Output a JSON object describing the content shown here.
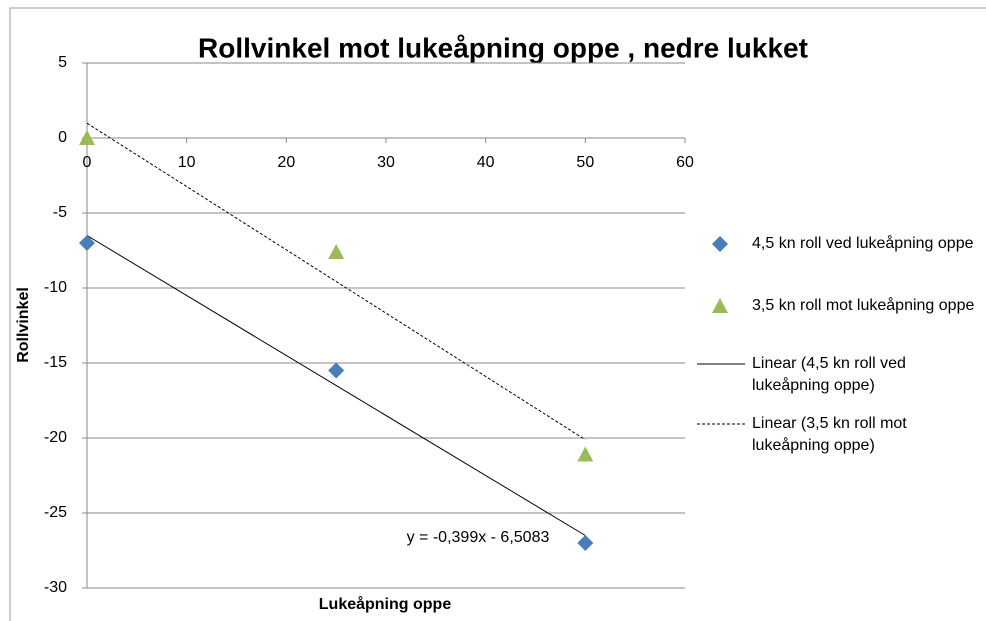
{
  "chart_data": {
    "type": "scatter",
    "title": "Rollvinkel mot lukeåpning oppe , nedre lukket",
    "x_label": "Lukeåpning oppe",
    "y_label": "Rollvinkel",
    "series": [
      {
        "name": "4,5 kn roll ved lukeåpning oppe",
        "color": "#4a7ebb",
        "marker": "diamond",
        "x": [
          0,
          25,
          50
        ],
        "values": [
          -7,
          -15.5,
          -27
        ]
      },
      {
        "name": "3,5 kn roll mot lukeåpning oppe",
        "color": "#9bbb59",
        "marker": "triangle",
        "x": [
          0,
          25,
          50
        ],
        "values": [
          0,
          -7.6,
          -21.1
        ]
      }
    ],
    "trendlines": [
      {
        "name": "Linear (4,5 kn roll ved lukeåpning oppe)",
        "series": 0,
        "style": "solid"
      },
      {
        "name": "Linear (3,5 kn roll mot lukeåpning oppe)",
        "series": 1,
        "style": "dashed"
      }
    ],
    "annotations": [
      "y = -0,399x - 6,5083"
    ],
    "xlim": [
      0,
      60
    ],
    "xticks": [
      0,
      10,
      20,
      30,
      40,
      50,
      60
    ],
    "ylim": [
      -30,
      5
    ],
    "yticks": [
      5,
      0,
      -5,
      -10,
      -15,
      -20,
      -25,
      -30
    ],
    "grid": true,
    "legend": "right"
  }
}
